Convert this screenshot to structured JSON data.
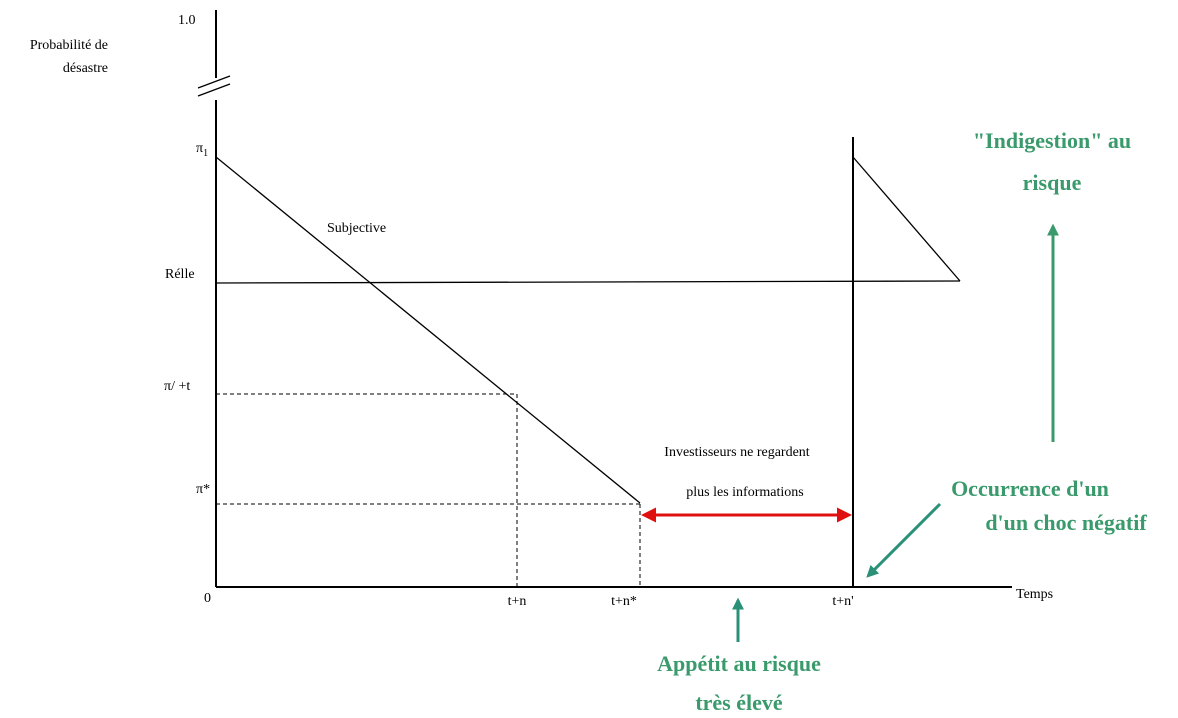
{
  "axis": {
    "y_top": "1.0",
    "y_title": [
      "Probabilité de",
      "désastre"
    ],
    "origin": "0",
    "x_title": "Temps"
  },
  "y_labels": {
    "pi1": {
      "symbol": "π",
      "sub": "1"
    },
    "reelle": "Rélle",
    "pi_t": "π/ +t",
    "pi_star": "π*"
  },
  "x_labels": [
    "t+n",
    "t+n*",
    "t+n'"
  ],
  "curves": {
    "subjective": "Subjective"
  },
  "notes": {
    "investisseurs": [
      "Investisseurs ne regardent",
      "plus les informations"
    ],
    "indigestion": [
      "\"Indigestion\" au",
      "risque"
    ],
    "occurrence": [
      "Occurrence d'un",
      "d'un choc négatif"
    ],
    "appetit": [
      "Appétit au risque",
      "très élevé"
    ]
  }
}
